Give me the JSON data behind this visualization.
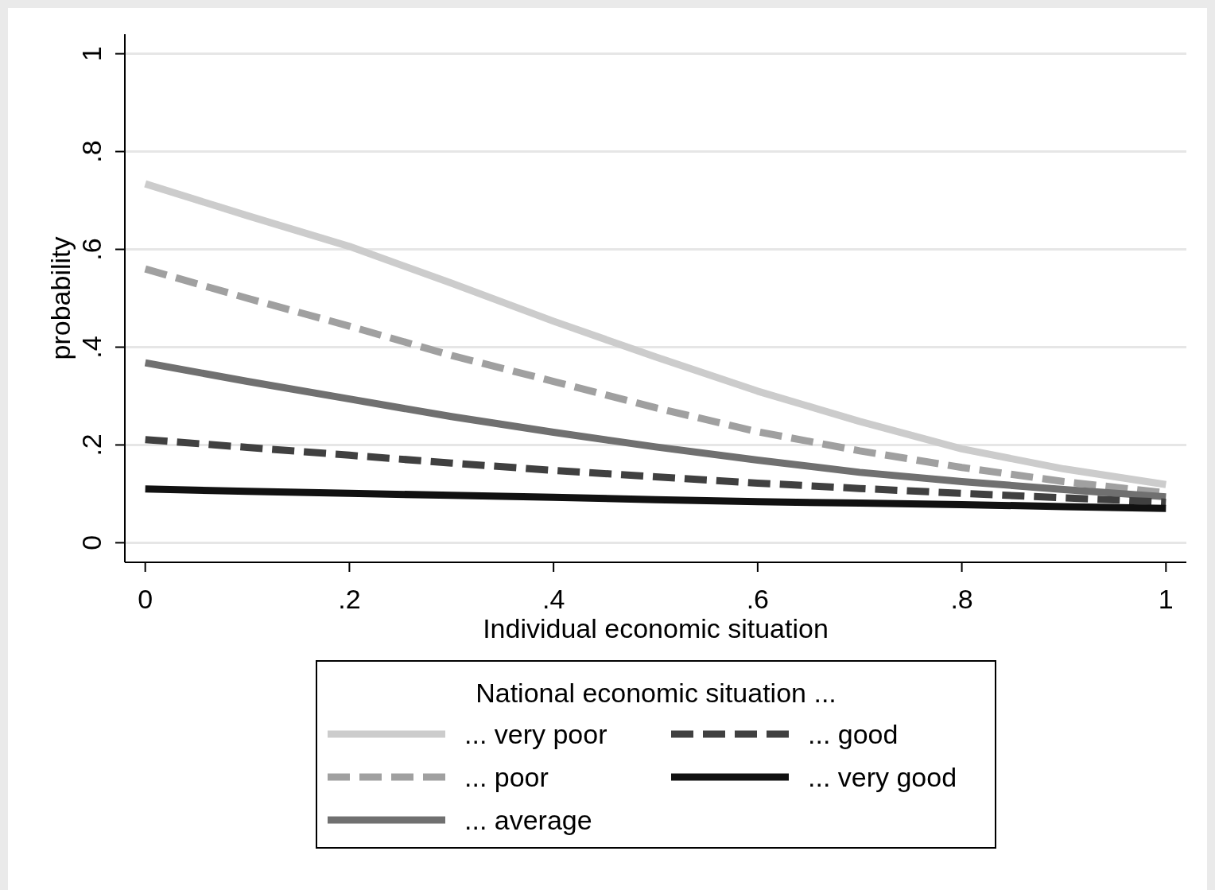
{
  "chart_data": {
    "type": "line",
    "xlabel": "Individual economic situation",
    "ylabel": "probability",
    "legend_title": "National economic situation ...",
    "legend": "bottom",
    "grid": "y",
    "marker": "none",
    "x": [
      0,
      0.1,
      0.2,
      0.3,
      0.4,
      0.5,
      0.6,
      0.7,
      0.8,
      0.9,
      1
    ],
    "xlim": [
      -0.02,
      1.02
    ],
    "ylim": [
      -0.04,
      1.04
    ],
    "xticks": [
      0,
      {
        "value": 0.2,
        "label": ".2"
      },
      {
        "value": 0.4,
        "label": ".4"
      },
      {
        "value": 0.6,
        "label": ".6"
      },
      {
        "value": 0.8,
        "label": ".8"
      },
      1
    ],
    "yticks": [
      0,
      {
        "value": 0.2,
        "label": ".2"
      },
      {
        "value": 0.4,
        "label": ".4"
      },
      {
        "value": 0.6,
        "label": ".6"
      },
      {
        "value": 0.8,
        "label": ".8"
      },
      1
    ],
    "series": [
      {
        "name": "... very poor",
        "color": "#cccccc",
        "line_style": "solid",
        "values": [
          0.734,
          0.669,
          0.606,
          0.531,
          0.453,
          0.38,
          0.31,
          0.248,
          0.192,
          0.151,
          0.119
        ]
      },
      {
        "name": "... poor",
        "color": "#a0a0a0",
        "line_style": "dashed",
        "values": [
          0.56,
          0.5,
          0.443,
          0.383,
          0.33,
          0.276,
          0.227,
          0.188,
          0.154,
          0.125,
          0.102
        ]
      },
      {
        "name": "... average",
        "color": "#707070",
        "line_style": "solid",
        "values": [
          0.368,
          0.33,
          0.294,
          0.258,
          0.226,
          0.196,
          0.169,
          0.144,
          0.125,
          0.109,
          0.094
        ]
      },
      {
        "name": "... good",
        "color": "#404040",
        "line_style": "dashed",
        "values": [
          0.211,
          0.195,
          0.179,
          0.163,
          0.148,
          0.135,
          0.122,
          0.111,
          0.101,
          0.092,
          0.083
        ]
      },
      {
        "name": "... very good",
        "color": "#111111",
        "line_style": "solid",
        "values": [
          0.11,
          0.105,
          0.101,
          0.097,
          0.093,
          0.088,
          0.084,
          0.081,
          0.078,
          0.074,
          0.07
        ]
      }
    ]
  }
}
